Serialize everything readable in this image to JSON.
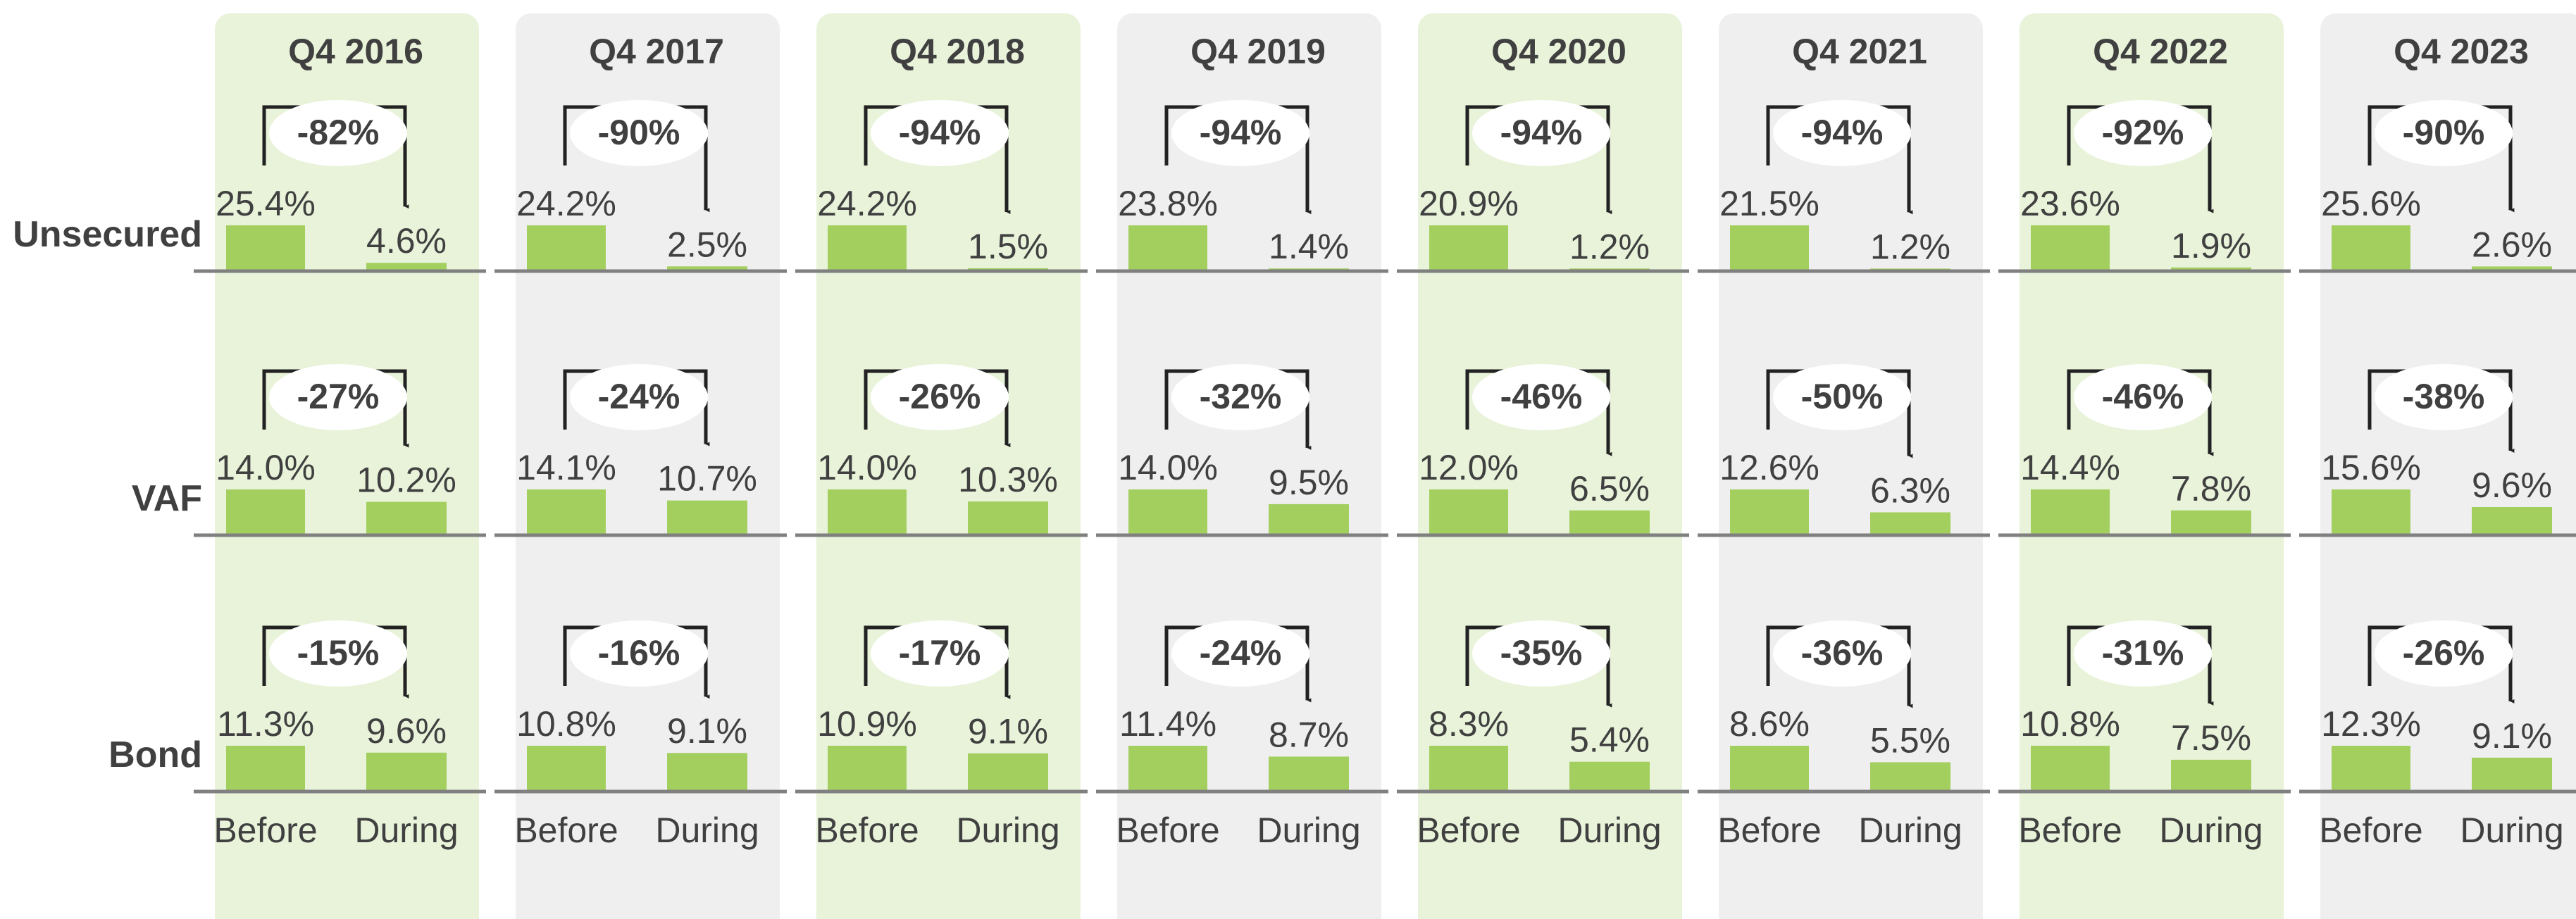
{
  "chart_data": {
    "type": "bar",
    "categories": [
      "Before",
      "During"
    ],
    "rows": [
      "Unsecured",
      "VAF",
      "Bond"
    ],
    "color": "#a3cf5f",
    "panel_colors": [
      "#e8f3da",
      "#efefef"
    ],
    "columns": [
      {
        "title": "Q4 2016",
        "panels": [
          {
            "values": [
              25.4,
              4.6
            ],
            "value_labels": [
              "25.4%",
              "4.6%"
            ],
            "change": "-82%"
          },
          {
            "values": [
              14.0,
              10.2
            ],
            "value_labels": [
              "14.0%",
              "10.2%"
            ],
            "change": "-27%"
          },
          {
            "values": [
              11.3,
              9.6
            ],
            "value_labels": [
              "11.3%",
              "9.6%"
            ],
            "change": "-15%"
          }
        ]
      },
      {
        "title": "Q4 2017",
        "panels": [
          {
            "values": [
              24.2,
              2.5
            ],
            "value_labels": [
              "24.2%",
              "2.5%"
            ],
            "change": "-90%"
          },
          {
            "values": [
              14.1,
              10.7
            ],
            "value_labels": [
              "14.1%",
              "10.7%"
            ],
            "change": "-24%"
          },
          {
            "values": [
              10.8,
              9.1
            ],
            "value_labels": [
              "10.8%",
              "9.1%"
            ],
            "change": "-16%"
          }
        ]
      },
      {
        "title": "Q4 2018",
        "panels": [
          {
            "values": [
              24.2,
              1.5
            ],
            "value_labels": [
              "24.2%",
              "1.5%"
            ],
            "change": "-94%"
          },
          {
            "values": [
              14.0,
              10.3
            ],
            "value_labels": [
              "14.0%",
              "10.3%"
            ],
            "change": "-26%"
          },
          {
            "values": [
              10.9,
              9.1
            ],
            "value_labels": [
              "10.9%",
              "9.1%"
            ],
            "change": "-17%"
          }
        ]
      },
      {
        "title": "Q4 2019",
        "panels": [
          {
            "values": [
              23.8,
              1.4
            ],
            "value_labels": [
              "23.8%",
              "1.4%"
            ],
            "change": "-94%"
          },
          {
            "values": [
              14.0,
              9.5
            ],
            "value_labels": [
              "14.0%",
              "9.5%"
            ],
            "change": "-32%"
          },
          {
            "values": [
              11.4,
              8.7
            ],
            "value_labels": [
              "11.4%",
              "8.7%"
            ],
            "change": "-24%"
          }
        ]
      },
      {
        "title": "Q4 2020",
        "panels": [
          {
            "values": [
              20.9,
              1.2
            ],
            "value_labels": [
              "20.9%",
              "1.2%"
            ],
            "change": "-94%"
          },
          {
            "values": [
              12.0,
              6.5
            ],
            "value_labels": [
              "12.0%",
              "6.5%"
            ],
            "change": "-46%"
          },
          {
            "values": [
              8.3,
              5.4
            ],
            "value_labels": [
              "8.3%",
              "5.4%"
            ],
            "change": "-35%"
          }
        ]
      },
      {
        "title": "Q4 2021",
        "panels": [
          {
            "values": [
              21.5,
              1.2
            ],
            "value_labels": [
              "21.5%",
              "1.2%"
            ],
            "change": "-94%"
          },
          {
            "values": [
              12.6,
              6.3
            ],
            "value_labels": [
              "12.6%",
              "6.3%"
            ],
            "change": "-50%"
          },
          {
            "values": [
              8.6,
              5.5
            ],
            "value_labels": [
              "8.6%",
              "5.5%"
            ],
            "change": "-36%"
          }
        ]
      },
      {
        "title": "Q4 2022",
        "panels": [
          {
            "values": [
              23.6,
              1.9
            ],
            "value_labels": [
              "23.6%",
              "1.9%"
            ],
            "change": "-92%"
          },
          {
            "values": [
              14.4,
              7.8
            ],
            "value_labels": [
              "14.4%",
              "7.8%"
            ],
            "change": "-46%"
          },
          {
            "values": [
              10.8,
              7.5
            ],
            "value_labels": [
              "10.8%",
              "7.5%"
            ],
            "change": "-31%"
          }
        ]
      },
      {
        "title": "Q4 2023",
        "panels": [
          {
            "values": [
              25.6,
              2.6
            ],
            "value_labels": [
              "25.6%",
              "2.6%"
            ],
            "change": "-90%"
          },
          {
            "values": [
              15.6,
              9.6
            ],
            "value_labels": [
              "15.6%",
              "9.6%"
            ],
            "change": "-38%"
          },
          {
            "values": [
              12.3,
              9.1
            ],
            "value_labels": [
              "12.3%",
              "9.1%"
            ],
            "change": "-26%"
          }
        ]
      }
    ]
  }
}
